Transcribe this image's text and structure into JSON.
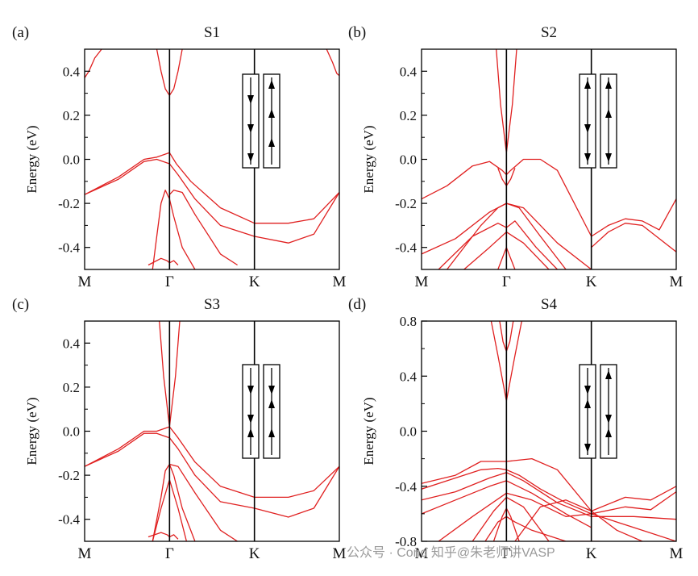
{
  "figure": {
    "watermark": "公众号 · Cond 知乎@朱老师讲VASP"
  },
  "chart_data": [
    {
      "type": "line",
      "panel_label": "(a)",
      "title": "S1",
      "ylabel": "Energy (eV)",
      "ylim": [
        -0.5,
        0.5
      ],
      "yticks": [
        -0.4,
        -0.2,
        0.0,
        0.2,
        0.4
      ],
      "ytick_labels": [
        "-0.4",
        "-0.2",
        "0.0",
        "0.2",
        "0.4"
      ],
      "kpath": [
        0,
        1,
        2,
        3
      ],
      "kpath_labels": [
        "M",
        "Γ",
        "K",
        "M"
      ],
      "spin_config": [
        [
          "down",
          "down",
          "down"
        ],
        [
          "up",
          "up",
          "up"
        ]
      ],
      "series": [
        {
          "name": "band 1",
          "x": [
            0.0,
            0.4,
            0.7,
            0.85,
            1.0,
            1.08,
            1.25,
            1.6,
            2.0,
            2.4,
            2.7,
            3.0
          ],
          "y": [
            -0.16,
            -0.08,
            0.0,
            0.01,
            0.03,
            -0.02,
            -0.1,
            -0.22,
            -0.29,
            -0.29,
            -0.27,
            -0.15
          ]
        },
        {
          "name": "band 2",
          "x": [
            0.0,
            0.4,
            0.7,
            0.85,
            1.0,
            1.1,
            1.3,
            1.6,
            2.0,
            2.4,
            2.7,
            3.0
          ],
          "y": [
            -0.16,
            -0.09,
            -0.01,
            0.0,
            -0.02,
            -0.07,
            -0.18,
            -0.3,
            -0.35,
            -0.38,
            -0.34,
            -0.15
          ]
        },
        {
          "name": "band 3",
          "x": [
            0.85,
            0.9,
            0.95,
            1.0,
            1.05,
            1.1,
            1.15
          ],
          "y": [
            0.5,
            0.4,
            0.32,
            0.29,
            0.32,
            0.4,
            0.5
          ]
        },
        {
          "name": "band 4",
          "x": [
            0.0,
            0.05,
            0.12,
            0.2
          ],
          "y": [
            0.37,
            0.4,
            0.46,
            0.5
          ]
        },
        {
          "name": "band 5",
          "x": [
            2.85,
            2.92,
            2.97,
            3.0
          ],
          "y": [
            0.5,
            0.44,
            0.39,
            0.38
          ]
        },
        {
          "name": "band 6",
          "x": [
            0.8,
            0.85,
            0.9,
            0.95,
            1.0,
            1.05,
            1.15,
            1.3
          ],
          "y": [
            -0.5,
            -0.35,
            -0.2,
            -0.14,
            -0.18,
            -0.26,
            -0.4,
            -0.5
          ]
        },
        {
          "name": "band 7",
          "x": [
            1.0,
            1.05,
            1.15,
            1.3,
            1.6,
            1.8
          ],
          "y": [
            -0.16,
            -0.14,
            -0.15,
            -0.25,
            -0.43,
            -0.48
          ]
        },
        {
          "name": "band 8",
          "x": [
            0.75,
            0.9,
            0.97,
            1.0,
            1.05,
            1.1
          ],
          "y": [
            -0.48,
            -0.45,
            -0.46,
            -0.47,
            -0.46,
            -0.48
          ]
        }
      ]
    },
    {
      "type": "line",
      "panel_label": "(b)",
      "title": "S2",
      "ylabel": "Energy (eV)",
      "ylim": [
        -0.5,
        0.5
      ],
      "yticks": [
        -0.4,
        -0.2,
        0.0,
        0.2,
        0.4
      ],
      "ytick_labels": [
        "-0.4",
        "-0.2",
        "0.0",
        "0.2",
        "0.4"
      ],
      "kpath": [
        0,
        1,
        2,
        3
      ],
      "kpath_labels": [
        "M",
        "Γ",
        "K",
        "M"
      ],
      "spin_config": [
        [
          "up",
          "down",
          "down"
        ],
        [
          "up",
          "up",
          "down"
        ]
      ],
      "series": [
        {
          "name": "band 1",
          "x": [
            0.0,
            0.3,
            0.6,
            0.8,
            0.95,
            1.0,
            1.05,
            1.2,
            1.4,
            1.6,
            1.8,
            2.0
          ],
          "y": [
            -0.18,
            -0.12,
            -0.03,
            -0.01,
            -0.05,
            -0.07,
            -0.05,
            0.0,
            0.0,
            -0.05,
            -0.2,
            -0.35
          ]
        },
        {
          "name": "band 2",
          "x": [
            0.9,
            0.95,
            1.0,
            1.05,
            1.1
          ],
          "y": [
            -0.04,
            -0.09,
            -0.12,
            -0.09,
            -0.04
          ]
        },
        {
          "name": "band 3",
          "x": [
            0.88,
            0.93,
            1.0,
            1.07,
            1.12
          ],
          "y": [
            0.5,
            0.25,
            0.03,
            0.25,
            0.5
          ]
        },
        {
          "name": "band 4",
          "x": [
            0.0,
            0.4,
            0.8,
            1.0,
            1.2,
            1.6,
            2.0
          ],
          "y": [
            -0.43,
            -0.36,
            -0.24,
            -0.2,
            -0.22,
            -0.38,
            -0.5
          ]
        },
        {
          "name": "band 5",
          "x": [
            0.3,
            0.7,
            0.9,
            1.0,
            1.15,
            1.4,
            1.7
          ],
          "y": [
            -0.5,
            -0.3,
            -0.22,
            -0.2,
            -0.22,
            -0.35,
            -0.5
          ]
        },
        {
          "name": "band 6",
          "x": [
            0.2,
            0.6,
            0.9,
            1.0,
            1.1,
            1.35,
            1.6
          ],
          "y": [
            -0.5,
            -0.35,
            -0.29,
            -0.31,
            -0.28,
            -0.4,
            -0.5
          ]
        },
        {
          "name": "band 7",
          "x": [
            0.5,
            0.8,
            1.0,
            1.2,
            1.5
          ],
          "y": [
            -0.5,
            -0.4,
            -0.33,
            -0.38,
            -0.5
          ]
        },
        {
          "name": "band 8",
          "x": [
            0.9,
            1.0,
            1.1
          ],
          "y": [
            -0.5,
            -0.4,
            -0.5
          ]
        },
        {
          "name": "band 9",
          "x": [
            2.0,
            2.2,
            2.4,
            2.6,
            2.8,
            3.0
          ],
          "y": [
            -0.35,
            -0.3,
            -0.27,
            -0.28,
            -0.32,
            -0.18
          ]
        },
        {
          "name": "band 10",
          "x": [
            2.0,
            2.2,
            2.4,
            2.6,
            2.8,
            3.0
          ],
          "y": [
            -0.4,
            -0.33,
            -0.29,
            -0.3,
            -0.36,
            -0.42
          ]
        }
      ]
    },
    {
      "type": "line",
      "panel_label": "(c)",
      "title": "S3",
      "ylabel": "Energy (eV)",
      "ylim": [
        -0.5,
        0.5
      ],
      "yticks": [
        -0.4,
        -0.2,
        0.0,
        0.2,
        0.4
      ],
      "ytick_labels": [
        "-0.4",
        "-0.2",
        "0.0",
        "0.2",
        "0.4"
      ],
      "kpath": [
        0,
        1,
        2,
        3
      ],
      "kpath_labels": [
        "M",
        "Γ",
        "K",
        "M"
      ],
      "spin_config": [
        [
          "down",
          "down",
          "up"
        ],
        [
          "down",
          "up",
          "up"
        ]
      ],
      "series": [
        {
          "name": "band 1",
          "x": [
            0.0,
            0.4,
            0.7,
            0.85,
            1.0,
            1.1,
            1.3,
            1.6,
            2.0,
            2.4,
            2.7,
            3.0
          ],
          "y": [
            -0.16,
            -0.08,
            0.0,
            0.0,
            0.02,
            -0.03,
            -0.14,
            -0.25,
            -0.3,
            -0.3,
            -0.27,
            -0.16
          ]
        },
        {
          "name": "band 2",
          "x": [
            0.0,
            0.4,
            0.7,
            0.85,
            1.0,
            1.1,
            1.3,
            1.6,
            2.0,
            2.4,
            2.7,
            3.0
          ],
          "y": [
            -0.16,
            -0.09,
            -0.01,
            -0.01,
            -0.03,
            -0.08,
            -0.2,
            -0.32,
            -0.35,
            -0.39,
            -0.35,
            -0.16
          ]
        },
        {
          "name": "band 3",
          "x": [
            0.88,
            0.93,
            1.0,
            1.07,
            1.12
          ],
          "y": [
            0.5,
            0.25,
            0.02,
            0.25,
            0.5
          ]
        },
        {
          "name": "band 4",
          "x": [
            0.8,
            0.9,
            0.95,
            1.0,
            1.05,
            1.15,
            1.3
          ],
          "y": [
            -0.5,
            -0.3,
            -0.18,
            -0.15,
            -0.2,
            -0.35,
            -0.5
          ]
        },
        {
          "name": "band 5",
          "x": [
            1.0,
            1.1,
            1.3,
            1.6,
            1.8
          ],
          "y": [
            -0.15,
            -0.16,
            -0.28,
            -0.45,
            -0.5
          ]
        },
        {
          "name": "band 6",
          "x": [
            0.8,
            0.9,
            1.0,
            1.1,
            1.2
          ],
          "y": [
            -0.5,
            -0.35,
            -0.22,
            -0.35,
            -0.5
          ]
        },
        {
          "name": "band 7",
          "x": [
            0.75,
            0.9,
            0.97,
            1.0,
            1.05,
            1.1
          ],
          "y": [
            -0.48,
            -0.46,
            -0.47,
            -0.48,
            -0.47,
            -0.49
          ]
        }
      ]
    },
    {
      "type": "line",
      "panel_label": "(d)",
      "title": "S4",
      "ylabel": "Energy (eV)",
      "ylim": [
        -0.8,
        0.8
      ],
      "yticks": [
        -0.8,
        -0.4,
        0.0,
        0.4,
        0.8
      ],
      "ytick_labels": [
        "-0.8",
        "-0.4",
        "0.0",
        "0.4",
        "0.8"
      ],
      "kpath": [
        0,
        1,
        2,
        3
      ],
      "kpath_labels": [
        "M",
        "Γ",
        "K",
        "M"
      ],
      "spin_config": [
        [
          "down",
          "up",
          "down"
        ],
        [
          "up",
          "down",
          "up"
        ]
      ],
      "series": [
        {
          "name": "band 1",
          "x": [
            0.82,
            0.9,
            1.0,
            1.1,
            1.18
          ],
          "y": [
            0.8,
            0.55,
            0.22,
            0.55,
            0.8
          ]
        },
        {
          "name": "band 2",
          "x": [
            0.92,
            0.96,
            1.0,
            1.04,
            1.08
          ],
          "y": [
            0.8,
            0.65,
            0.58,
            0.65,
            0.8
          ]
        },
        {
          "name": "band 3",
          "x": [
            0.0,
            0.4,
            0.7,
            1.0,
            1.3,
            1.6,
            2.0,
            2.4,
            2.7,
            3.0
          ],
          "y": [
            -0.38,
            -0.32,
            -0.22,
            -0.22,
            -0.2,
            -0.28,
            -0.58,
            -0.48,
            -0.5,
            -0.4
          ]
        },
        {
          "name": "band 4",
          "x": [
            0.0,
            0.4,
            0.7,
            0.9,
            1.0,
            1.15,
            1.4,
            1.7,
            2.0,
            2.4,
            2.7,
            3.0
          ],
          "y": [
            -0.42,
            -0.34,
            -0.28,
            -0.27,
            -0.28,
            -0.32,
            -0.42,
            -0.52,
            -0.6,
            -0.55,
            -0.57,
            -0.44
          ]
        },
        {
          "name": "band 5",
          "x": [
            0.0,
            0.4,
            0.8,
            1.0,
            1.2,
            1.6,
            2.0,
            2.5,
            3.0
          ],
          "y": [
            -0.5,
            -0.44,
            -0.34,
            -0.3,
            -0.36,
            -0.52,
            -0.62,
            -0.62,
            -0.64
          ]
        },
        {
          "name": "band 6",
          "x": [
            0.0,
            0.4,
            0.8,
            1.0,
            1.3,
            1.7,
            2.0
          ],
          "y": [
            -0.6,
            -0.5,
            -0.4,
            -0.36,
            -0.45,
            -0.6,
            -0.7
          ]
        },
        {
          "name": "band 7",
          "x": [
            0.2,
            0.6,
            1.0,
            1.3,
            1.7,
            2.0,
            2.5,
            3.0
          ],
          "y": [
            -0.8,
            -0.62,
            -0.45,
            -0.5,
            -0.62,
            -0.6,
            -0.7,
            -0.8
          ]
        },
        {
          "name": "band 8",
          "x": [
            0.6,
            0.85,
            1.0,
            1.2,
            1.5
          ],
          "y": [
            -0.8,
            -0.58,
            -0.48,
            -0.55,
            -0.8
          ]
        },
        {
          "name": "band 9",
          "x": [
            0.85,
            0.95,
            1.0,
            1.05,
            1.15
          ],
          "y": [
            -0.8,
            -0.62,
            -0.56,
            -0.62,
            -0.8
          ]
        },
        {
          "name": "band 10",
          "x": [
            0.75,
            0.9,
            1.0,
            1.1,
            1.3,
            1.7,
            2.1
          ],
          "y": [
            -0.8,
            -0.66,
            -0.62,
            -0.66,
            -0.72,
            -0.8,
            -0.8
          ]
        },
        {
          "name": "band 11",
          "x": [
            1.1,
            1.4,
            1.7,
            2.0,
            2.3,
            2.6
          ],
          "y": [
            -0.8,
            -0.55,
            -0.5,
            -0.58,
            -0.72,
            -0.8
          ]
        }
      ]
    }
  ]
}
